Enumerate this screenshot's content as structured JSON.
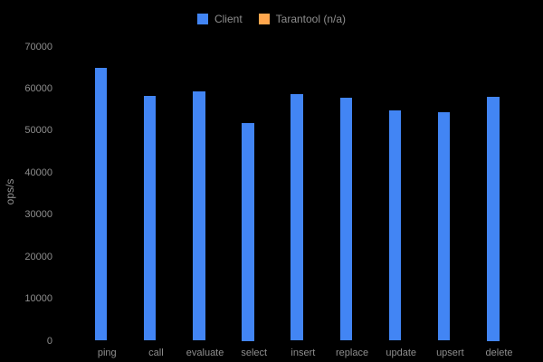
{
  "chart_data": {
    "type": "bar",
    "ylabel": "ops/s",
    "categories": [
      "ping",
      "call",
      "evaluate",
      "select",
      "insert",
      "replace",
      "update",
      "upsert",
      "delete"
    ],
    "series": [
      {
        "name": "Client",
        "color": "#4285f4",
        "values": [
          64900,
          58200,
          59300,
          51800,
          58600,
          57800,
          54900,
          54400,
          58100
        ]
      },
      {
        "name": "Tarantool (n/a)",
        "color": "#ffa64d",
        "values": [
          null,
          null,
          null,
          null,
          null,
          null,
          null,
          null,
          null
        ]
      }
    ],
    "ylim": [
      0,
      70000
    ],
    "yticks": [
      0,
      10000,
      20000,
      30000,
      40000,
      50000,
      60000,
      70000
    ],
    "legend_position": "top",
    "grid": false,
    "colors": {
      "background": "#000000",
      "text": "#8e8e8e"
    }
  }
}
